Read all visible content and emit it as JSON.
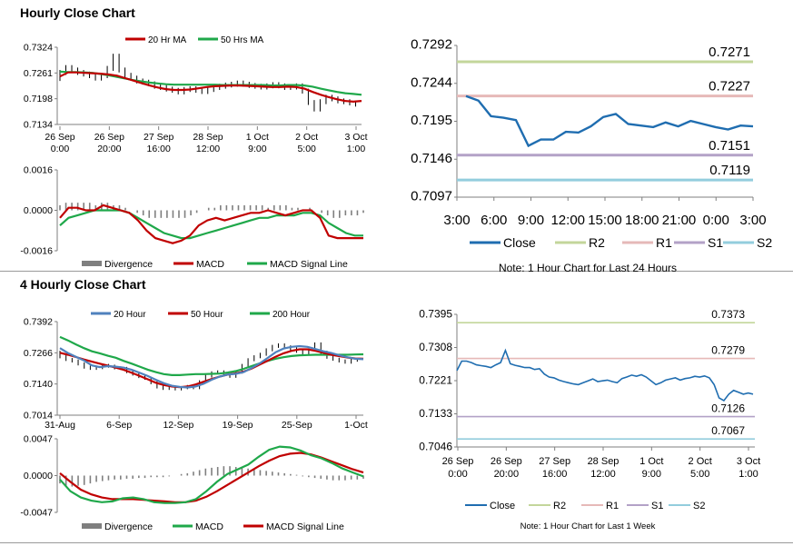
{
  "sections": {
    "hourly_title": "Hourly Close Chart",
    "four_hourly_title": "4 Hourly Close Chart"
  },
  "colors": {
    "red": "#c00000",
    "green": "#1fa84a",
    "blue": "#4f81bd",
    "steel": "#1f6db0",
    "r2": "#c3d69b",
    "r1": "#e6b9b8",
    "s1": "#b3a2c7",
    "s2": "#93cddd",
    "bar": "#7f7f7f",
    "axis": "#7f7f7f"
  },
  "chart_data": [
    {
      "id": "hourly_price",
      "type": "line",
      "legend": [
        "20 Hr MA",
        "50 Hrs MA"
      ],
      "legend_colors": [
        "red",
        "green"
      ],
      "ylim": [
        0.7134,
        0.7324
      ],
      "yticks": [
        "0.7324",
        "0.7261",
        "0.7198",
        "0.7134"
      ],
      "xticks": [
        [
          "26 Sep",
          "0:00"
        ],
        [
          "26 Sep",
          "20:00"
        ],
        [
          "27 Sep",
          "16:00"
        ],
        [
          "28 Sep",
          "12:00"
        ],
        [
          "1 Oct",
          "9:00"
        ],
        [
          "2 Oct",
          "5:00"
        ],
        [
          "3 Oct",
          "1:00"
        ]
      ],
      "series": [
        {
          "name": "Close",
          "kind": "bars",
          "values": [
            0.7247,
            0.7262,
            0.7274,
            0.7268,
            0.7262,
            0.7258,
            0.7254,
            0.7248,
            0.7254,
            0.7272,
            0.7302,
            0.7268,
            0.7255,
            0.7248,
            0.7241,
            0.7238,
            0.7234,
            0.7228,
            0.7225,
            0.7221,
            0.7218,
            0.7214,
            0.722,
            0.7222,
            0.7218,
            0.7215,
            0.722,
            0.7225,
            0.7228,
            0.7231,
            0.7233,
            0.7236,
            0.7233,
            0.723,
            0.7228,
            0.7226,
            0.7229,
            0.7232,
            0.7229,
            0.7225,
            0.7226,
            0.7229,
            0.7216,
            0.7188,
            0.7172,
            0.719,
            0.7201,
            0.7197,
            0.7192,
            0.719,
            0.7187,
            0.7184
          ]
        },
        {
          "name": "20 Hr MA",
          "values": [
            0.7252,
            0.7262,
            0.7262,
            0.7261,
            0.726,
            0.7259,
            0.7257,
            0.7254,
            0.7248,
            0.7242,
            0.7236,
            0.723,
            0.7225,
            0.7221,
            0.7219,
            0.7219,
            0.722,
            0.7223,
            0.7226,
            0.7228,
            0.7229,
            0.723,
            0.723,
            0.7229,
            0.7228,
            0.7227,
            0.7226,
            0.7226,
            0.7227,
            0.7226,
            0.7222,
            0.7214,
            0.7207,
            0.7201,
            0.7196,
            0.7192,
            0.719,
            0.7192
          ]
        },
        {
          "name": "50 Hrs MA",
          "values": [
            0.7264,
            0.7263,
            0.7263,
            0.7262,
            0.7261,
            0.7258,
            0.7255,
            0.7251,
            0.7247,
            0.7243,
            0.724,
            0.7237,
            0.7235,
            0.7233,
            0.7232,
            0.7232,
            0.7232,
            0.7232,
            0.7232,
            0.7232,
            0.7231,
            0.7231,
            0.7231,
            0.7231,
            0.7231,
            0.7231,
            0.723,
            0.723,
            0.7231,
            0.7231,
            0.723,
            0.7227,
            0.7222,
            0.7218,
            0.7214,
            0.7211,
            0.7209,
            0.7207
          ]
        }
      ]
    },
    {
      "id": "hourly_macd",
      "type": "line",
      "legend": [
        "Divergence",
        "MACD",
        "MACD Signal Line"
      ],
      "legend_colors": [
        "bar",
        "red",
        "green"
      ],
      "ylim": [
        -0.0016,
        0.0016
      ],
      "yticks": [
        "0.0016",
        "0.0000",
        "-0.0016"
      ],
      "series": [
        {
          "name": "Divergence",
          "kind": "bars",
          "values": [
            0.0002,
            0.0003,
            0.0003,
            0.0003,
            0.0003,
            0.0003,
            0.0002,
            0.0003,
            0.0003,
            0.0002,
            0.0002,
            0.0001,
            0.0,
            -0.0001,
            -0.0002,
            -0.0003,
            -0.0003,
            -0.0003,
            -0.0003,
            -0.0003,
            -0.0003,
            -0.0003,
            -0.0002,
            -0.0001,
            0.0,
            0.0001,
            0.0001,
            0.0002,
            0.0002,
            0.0002,
            0.0002,
            0.0002,
            0.0002,
            0.0002,
            0.0002,
            0.0001,
            0.0002,
            0.0002,
            0.0002,
            0.0001,
            0.0001,
            0.0,
            0.0001,
            0.0,
            -0.0001,
            -0.0002,
            -0.0003,
            -0.0003,
            -0.0002,
            -0.0002,
            -0.0002,
            -0.0001
          ]
        },
        {
          "name": "MACD",
          "values": [
            -0.0003,
            0.0001,
            0.0001,
            0.0,
            0.0,
            0.0002,
            0.0001,
            0.0,
            -0.0001,
            -0.0004,
            -0.0008,
            -0.0011,
            -0.0012,
            -0.0013,
            -0.0012,
            -0.001,
            -0.0006,
            -0.0004,
            -0.0003,
            -0.0004,
            -0.0003,
            -0.0002,
            -0.0001,
            -0.0001,
            0.0,
            -0.0001,
            -0.0002,
            -0.0001,
            0.0,
            0.0,
            -0.0003,
            -0.001,
            -0.0011,
            -0.0011,
            -0.0011,
            -0.0011
          ]
        },
        {
          "name": "MACD Signal Line",
          "values": [
            -0.0006,
            -0.0003,
            -0.0002,
            -0.0001,
            0.0,
            0.0,
            0.0,
            0.0,
            -0.0001,
            -0.0003,
            -0.0005,
            -0.0007,
            -0.0009,
            -0.001,
            -0.0011,
            -0.0011,
            -0.001,
            -0.0009,
            -0.0008,
            -0.0007,
            -0.0006,
            -0.0005,
            -0.0004,
            -0.0003,
            -0.0003,
            -0.0002,
            -0.0002,
            -0.0002,
            -0.0001,
            -0.0001,
            -0.0002,
            -0.0005,
            -0.0007,
            -0.0009,
            -0.001,
            -0.001
          ]
        }
      ]
    },
    {
      "id": "hourly_levels",
      "type": "line",
      "ylim": [
        0.7097,
        0.7292
      ],
      "yticks": [
        "0.7292",
        "0.7244",
        "0.7195",
        "0.7146",
        "0.7097"
      ],
      "xticks": [
        "3:00",
        "6:00",
        "9:00",
        "12:00",
        "15:00",
        "18:00",
        "21:00",
        "0:00",
        "3:00"
      ],
      "legend": [
        "Close",
        "R2",
        "R1",
        "S1",
        "S2"
      ],
      "legend_colors": [
        "steel",
        "r2",
        "r1",
        "s1",
        "s2"
      ],
      "note": "Note: 1 Hour Chart for Last 24 Hours",
      "levels": [
        {
          "name": "R2",
          "value": 0.7271,
          "label": "0.7271",
          "color": "r2"
        },
        {
          "name": "R1",
          "value": 0.7227,
          "label": "0.7227",
          "color": "r1"
        },
        {
          "name": "S1",
          "value": 0.7151,
          "label": "0.7151",
          "color": "s1"
        },
        {
          "name": "S2",
          "value": 0.7119,
          "label": "0.7119",
          "color": "s2"
        }
      ],
      "series": [
        {
          "name": "Close",
          "values": [
            0.7227,
            0.7221,
            0.7201,
            0.7199,
            0.7196,
            0.7163,
            0.7171,
            0.7171,
            0.7181,
            0.718,
            0.7188,
            0.72,
            0.7204,
            0.7191,
            0.7189,
            0.7187,
            0.7193,
            0.7188,
            0.7195,
            0.7191,
            0.7187,
            0.7184,
            0.7189,
            0.7188
          ]
        }
      ]
    },
    {
      "id": "four_hourly_price",
      "type": "line",
      "legend": [
        "20 Hour",
        "50 Hour",
        "200 Hour"
      ],
      "legend_colors": [
        "blue",
        "red",
        "green"
      ],
      "ylim": [
        0.7014,
        0.7392
      ],
      "yticks": [
        "0.7392",
        "0.7266",
        "0.7140",
        "0.7014"
      ],
      "xticks": [
        "31-Aug",
        "6-Sep",
        "12-Sep",
        "19-Sep",
        "25-Sep",
        "1-Oct"
      ],
      "series": [
        {
          "name": "Close",
          "kind": "bars",
          "values": [
            0.7268,
            0.725,
            0.7239,
            0.7233,
            0.7221,
            0.7208,
            0.7203,
            0.7206,
            0.7215,
            0.7212,
            0.7205,
            0.7203,
            0.719,
            0.718,
            0.717,
            0.7163,
            0.7145,
            0.7128,
            0.7122,
            0.7126,
            0.712,
            0.7125,
            0.713,
            0.7125,
            0.7149,
            0.7172,
            0.7185,
            0.7189,
            0.7177,
            0.7171,
            0.7188,
            0.7215,
            0.7238,
            0.725,
            0.726,
            0.7278,
            0.7292,
            0.7298,
            0.729,
            0.7282,
            0.7272,
            0.7265,
            0.7278,
            0.7302,
            0.7268,
            0.7248,
            0.724,
            0.7233,
            0.7228,
            0.7236,
            0.7237
          ]
        },
        {
          "name": "20 Hour",
          "values": [
            0.7285,
            0.7265,
            0.725,
            0.7235,
            0.7215,
            0.7208,
            0.7212,
            0.721,
            0.7206,
            0.7197,
            0.7185,
            0.7172,
            0.7157,
            0.7143,
            0.7133,
            0.7128,
            0.7126,
            0.713,
            0.7141,
            0.7157,
            0.717,
            0.7178,
            0.7181,
            0.7188,
            0.7204,
            0.7223,
            0.7245,
            0.7268,
            0.7283,
            0.729,
            0.7293,
            0.729,
            0.7281,
            0.7272,
            0.7265,
            0.7256,
            0.7248,
            0.7242,
            0.724
          ]
        },
        {
          "name": "50 Hour",
          "values": [
            0.7266,
            0.7258,
            0.7249,
            0.7239,
            0.723,
            0.7222,
            0.7214,
            0.7206,
            0.7197,
            0.7185,
            0.7172,
            0.7159,
            0.7145,
            0.7136,
            0.713,
            0.7127,
            0.713,
            0.7138,
            0.7149,
            0.716,
            0.717,
            0.7178,
            0.7183,
            0.719,
            0.7202,
            0.7218,
            0.7234,
            0.725,
            0.7264,
            0.7274,
            0.728,
            0.728,
            0.7274,
            0.7266,
            0.7258,
            0.7252,
            0.7247,
            0.7243,
            0.7242
          ]
        },
        {
          "name": "200 Hour",
          "values": [
            0.733,
            0.7316,
            0.73,
            0.7285,
            0.7272,
            0.7264,
            0.7254,
            0.7246,
            0.7233,
            0.7222,
            0.721,
            0.7198,
            0.7188,
            0.718,
            0.7176,
            0.7176,
            0.7178,
            0.718,
            0.718,
            0.7181,
            0.7182,
            0.7186,
            0.7192,
            0.7201,
            0.7212,
            0.7223,
            0.7233,
            0.7242,
            0.7248,
            0.7253,
            0.7256,
            0.7257,
            0.7258,
            0.7258,
            0.7258,
            0.7258,
            0.7258,
            0.7259,
            0.726
          ]
        }
      ]
    },
    {
      "id": "four_hourly_macd",
      "type": "line",
      "legend": [
        "Divergence",
        "MACD",
        "MACD Signal Line"
      ],
      "legend_colors": [
        "bar",
        "green",
        "red"
      ],
      "ylim": [
        -0.0047,
        0.0047
      ],
      "yticks": [
        "0.0047",
        "0.0000",
        "-0.0047"
      ],
      "series": [
        {
          "name": "Divergence",
          "kind": "bars",
          "values": [
            -0.001,
            -0.0013,
            -0.0014,
            -0.0013,
            -0.0012,
            -0.001,
            -0.0008,
            -0.0007,
            -0.0006,
            -0.0005,
            -0.0005,
            -0.0004,
            -0.0004,
            -0.0003,
            -0.0003,
            -0.0002,
            -0.0002,
            -0.0002,
            -0.0001,
            0.0,
            0.0002,
            0.0003,
            0.0005,
            0.0007,
            0.0009,
            0.001,
            0.0011,
            0.0012,
            0.0012,
            0.0011,
            0.001,
            0.0009,
            0.0008,
            0.0007,
            0.0006,
            0.0005,
            0.0004,
            0.0003,
            0.0002,
            0.0001,
            -0.0001,
            -0.0002,
            -0.0003,
            -0.0004,
            -0.0005,
            -0.0006,
            -0.0006,
            -0.0006,
            -0.0005,
            -0.0005,
            -0.0004
          ]
        },
        {
          "name": "MACD",
          "values": [
            -0.0005,
            -0.002,
            -0.0028,
            -0.0032,
            -0.0034,
            -0.0033,
            -0.0029,
            -0.0028,
            -0.003,
            -0.0034,
            -0.0035,
            -0.0035,
            -0.0034,
            -0.003,
            -0.002,
            -0.0008,
            0.0002,
            0.0008,
            0.0014,
            0.0024,
            0.0033,
            0.0037,
            0.0036,
            0.0032,
            0.0026,
            0.0022,
            0.0016,
            0.0009,
            0.0004,
            -0.0001
          ]
        },
        {
          "name": "MACD Signal Line",
          "values": [
            0.0003,
            -0.0008,
            -0.0018,
            -0.0024,
            -0.0028,
            -0.003,
            -0.003,
            -0.003,
            -0.0031,
            -0.0032,
            -0.0033,
            -0.0034,
            -0.0034,
            -0.0032,
            -0.0027,
            -0.002,
            -0.0012,
            -0.0004,
            0.0004,
            0.0012,
            0.0019,
            0.0025,
            0.0028,
            0.0029,
            0.0027,
            0.0023,
            0.0018,
            0.0013,
            0.0008,
            0.0004
          ]
        }
      ]
    },
    {
      "id": "four_hourly_levels",
      "type": "line",
      "ylim": [
        0.7046,
        0.7395
      ],
      "yticks": [
        "0.7395",
        "0.7308",
        "0.7221",
        "0.7133",
        "0.7046"
      ],
      "xticks": [
        [
          "26 Sep",
          "0:00"
        ],
        [
          "26 Sep",
          "20:00"
        ],
        [
          "27 Sep",
          "16:00"
        ],
        [
          "28 Sep",
          "12:00"
        ],
        [
          "1 Oct",
          "9:00"
        ],
        [
          "2 Oct",
          "5:00"
        ],
        [
          "3 Oct",
          "1:00"
        ]
      ],
      "legend": [
        "Close",
        "R2",
        "R1",
        "S1",
        "S2"
      ],
      "legend_colors": [
        "steel",
        "r2",
        "r1",
        "s1",
        "s2"
      ],
      "note": "Note: 1 Hour Chart for Last 1 Week",
      "levels": [
        {
          "name": "R2",
          "value": 0.7373,
          "label": "0.7373",
          "color": "r2"
        },
        {
          "name": "R1",
          "value": 0.7279,
          "label": "0.7279",
          "color": "r1"
        },
        {
          "name": "S1",
          "value": 0.7126,
          "label": "0.7126",
          "color": "s1"
        },
        {
          "name": "S2",
          "value": 0.7067,
          "label": "0.7067",
          "color": "s2"
        }
      ],
      "series": [
        {
          "name": "Close",
          "values": [
            0.7247,
            0.7272,
            0.7272,
            0.7268,
            0.7262,
            0.726,
            0.7258,
            0.7255,
            0.7262,
            0.7268,
            0.73,
            0.7265,
            0.7261,
            0.7258,
            0.7255,
            0.7255,
            0.725,
            0.7252,
            0.7238,
            0.723,
            0.7228,
            0.7222,
            0.7218,
            0.7215,
            0.7212,
            0.721,
            0.7215,
            0.722,
            0.7225,
            0.7218,
            0.722,
            0.7222,
            0.7218,
            0.7215,
            0.7226,
            0.723,
            0.7235,
            0.7232,
            0.7236,
            0.723,
            0.722,
            0.721,
            0.7215,
            0.7222,
            0.7225,
            0.7228,
            0.7222,
            0.7226,
            0.7228,
            0.7232,
            0.723,
            0.7233,
            0.7228,
            0.721,
            0.7175,
            0.7168,
            0.7185,
            0.7195,
            0.719,
            0.7185,
            0.7188,
            0.7185
          ]
        }
      ]
    }
  ]
}
